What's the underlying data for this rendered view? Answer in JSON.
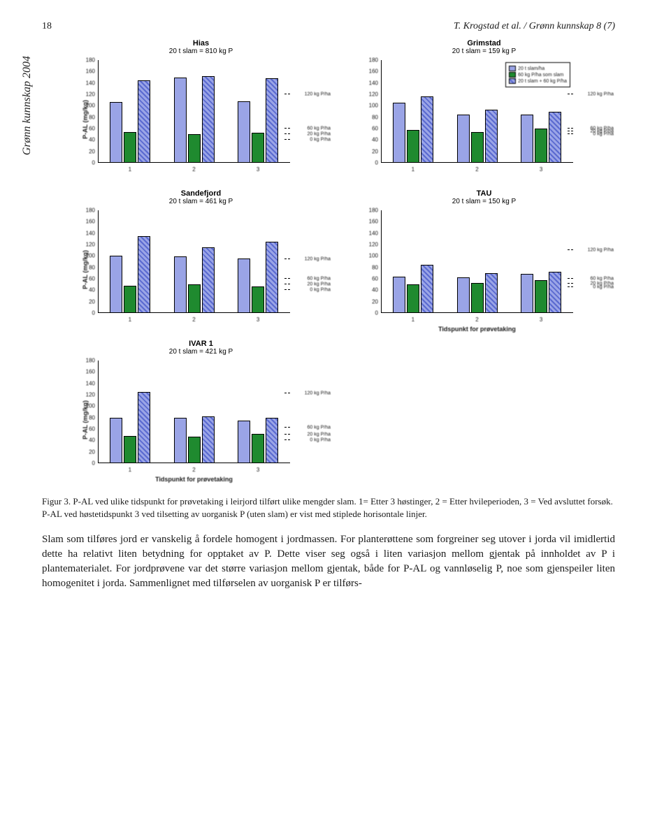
{
  "header": {
    "page": "18",
    "running": "T. Krogstad et al. / Grønn kunnskap 8 (7)"
  },
  "side_label": "Grønn kunnskap 2004",
  "legend": {
    "items": [
      {
        "label": "20 t slam/ha",
        "sw": "blue"
      },
      {
        "label": "60 kg P/ha som slam",
        "sw": "green"
      },
      {
        "label": "20 t slam + 60 kg P/ha",
        "sw": "hatch"
      }
    ]
  },
  "axis": {
    "ylabel": "P-AL (mg/kg)",
    "xaxis_title": "Tidspunkt for prøvetaking",
    "ymax": 180,
    "ytick_step": 20
  },
  "reflines": {
    "labels": [
      "120 kg P/ha",
      "60 kg P/ha",
      "20 kg P/ha",
      "0 kg P/ha"
    ]
  },
  "charts": [
    {
      "title": "Hias",
      "sub": "20 t slam = 810 kg P",
      "show_ylabel": true,
      "show_legend": false,
      "groups": [
        {
          "x": "1",
          "blue": 106,
          "green": 54,
          "hatch": 145
        },
        {
          "x": "2",
          "blue": 150,
          "green": 50,
          "hatch": 152
        },
        {
          "x": "3",
          "blue": 108,
          "green": 53,
          "hatch": 148
        }
      ],
      "refs": [
        120,
        60,
        50,
        40
      ]
    },
    {
      "title": "Grimstad",
      "sub": "20 t slam = 159 kg P",
      "show_ylabel": false,
      "show_legend": true,
      "groups": [
        {
          "x": "1",
          "blue": 105,
          "green": 58,
          "hatch": 116
        },
        {
          "x": "2",
          "blue": 85,
          "green": 54,
          "hatch": 93
        },
        {
          "x": "3",
          "blue": 84,
          "green": 60,
          "hatch": 90
        }
      ],
      "refs": [
        120,
        60,
        55,
        50
      ]
    },
    {
      "title": "Sandefjord",
      "sub": "20 t slam = 461 kg P",
      "show_ylabel": true,
      "show_legend": false,
      "groups": [
        {
          "x": "1",
          "blue": 100,
          "green": 48,
          "hatch": 135
        },
        {
          "x": "2",
          "blue": 99,
          "green": 50,
          "hatch": 115
        },
        {
          "x": "3",
          "blue": 96,
          "green": 46,
          "hatch": 125
        }
      ],
      "refs": [
        94,
        60,
        50,
        40
      ]
    },
    {
      "title": "TAU",
      "sub": "20 t slam = 150 kg P",
      "show_ylabel": false,
      "show_legend": false,
      "groups": [
        {
          "x": "1",
          "blue": 64,
          "green": 50,
          "hatch": 85
        },
        {
          "x": "2",
          "blue": 62,
          "green": 53,
          "hatch": 70
        },
        {
          "x": "3",
          "blue": 68,
          "green": 57,
          "hatch": 72
        }
      ],
      "refs": [
        110,
        60,
        52,
        45
      ],
      "show_xaxis_title": true
    },
    {
      "title": "IVAR 1",
      "sub": "20 t slam = 421 kg P",
      "show_ylabel": true,
      "show_legend": false,
      "groups": [
        {
          "x": "1",
          "blue": 80,
          "green": 48,
          "hatch": 125
        },
        {
          "x": "2",
          "blue": 80,
          "green": 47,
          "hatch": 82
        },
        {
          "x": "3",
          "blue": 75,
          "green": 52,
          "hatch": 80
        }
      ],
      "refs": [
        123,
        62,
        50,
        40
      ],
      "show_xaxis_title": true
    }
  ],
  "caption": "Figur 3. P-AL ved ulike tidspunkt for prøvetaking i leirjord tilført ulike mengder slam. 1= Etter 3 høstinger, 2 = Etter hvileperioden, 3 = Ved avsluttet forsøk. P-AL ved høstetidspunkt 3 ved tilsetting av uorganisk P (uten slam) er vist med stiplede horisontale linjer.",
  "body": "Slam som tilføres jord er vanskelig å fordele homogent i jordmassen. For planterøttene som forgreiner seg utover i jorda vil imidlertid dette ha relativt liten betydning for opptaket av P. Dette viser seg også i liten variasjon mellom gjentak på innholdet av P i plantematerialet. For jordprøvene var det større variasjon mellom gjentak, både for P-AL og vannløselig P, noe som gjenspeiler liten homogenitet i jorda. Sammenlignet med tilførselen av uorganisk P er tilførs-"
}
